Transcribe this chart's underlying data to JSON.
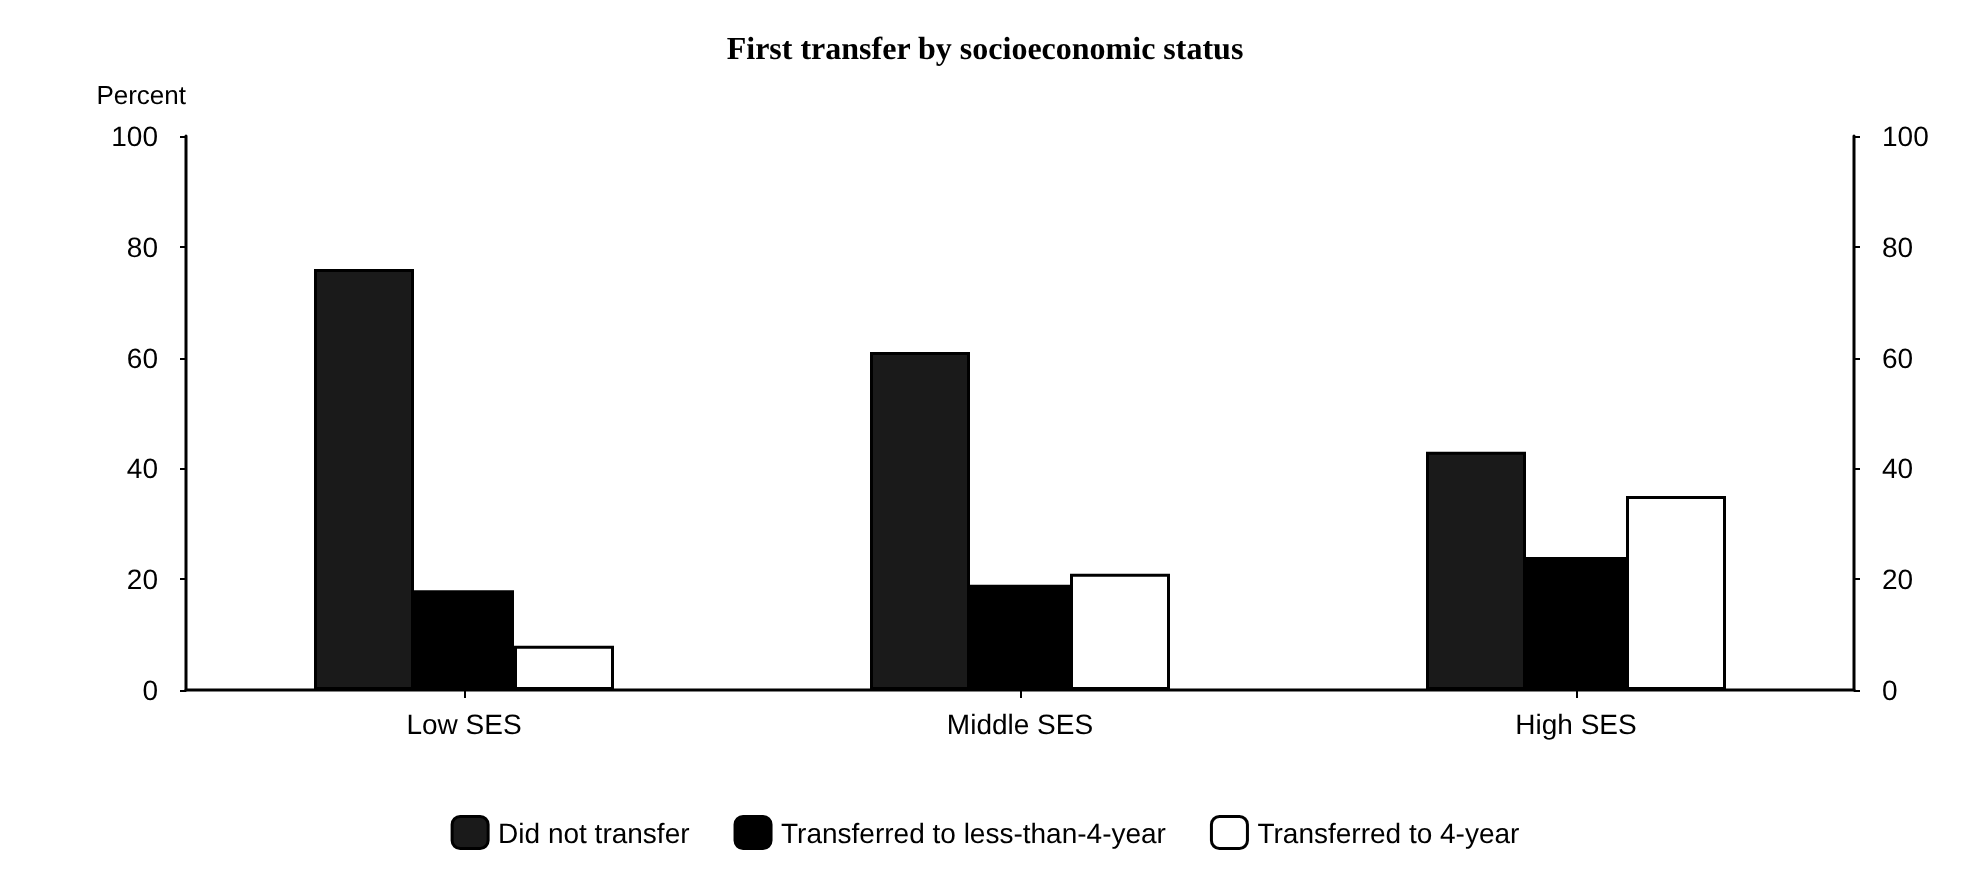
{
  "chart_data": {
    "type": "bar",
    "title": "First transfer by socioeconomic status",
    "ylabel": "Percent",
    "categories": [
      "Low SES",
      "Middle SES",
      "High SES"
    ],
    "series": [
      {
        "name": "Did not transfer",
        "color": "#1a1a1a",
        "values": [
          76,
          61,
          43
        ]
      },
      {
        "name": "Transferred to less-than-4-year",
        "color": "#000000",
        "values": [
          18,
          19,
          24
        ]
      },
      {
        "name": "Transferred to 4-year",
        "color": "#ffffff",
        "values": [
          8,
          21,
          35
        ]
      }
    ],
    "ylim": [
      0,
      100
    ],
    "yticks": [
      0,
      20,
      40,
      60,
      80,
      100
    ],
    "y2lim": [
      0,
      100
    ],
    "y2ticks": [
      0,
      20,
      40,
      60,
      80,
      100
    ],
    "grid": false,
    "legend": "bottom"
  }
}
